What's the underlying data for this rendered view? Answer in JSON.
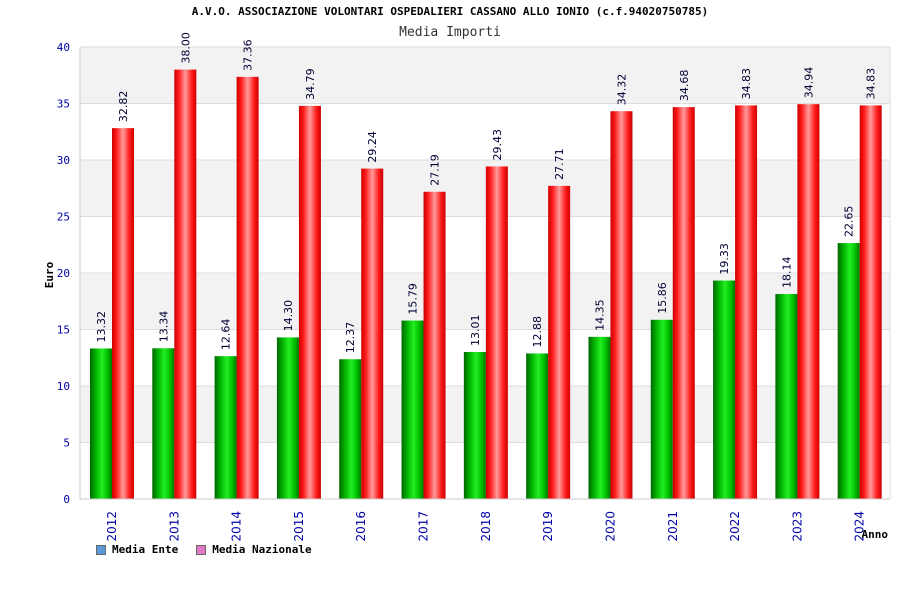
{
  "chart_data": {
    "type": "bar",
    "title": "A.V.O. ASSOCIAZIONE VOLONTARI OSPEDALIERI CASSANO ALLO IONIO (c.f.94020750785)",
    "subtitle": "Media Importi",
    "xlabel": "Anno",
    "ylabel": "Euro",
    "ylim": [
      0,
      40
    ],
    "yticks": [
      0,
      5,
      10,
      15,
      20,
      25,
      30,
      35,
      40
    ],
    "categories": [
      "2012",
      "2013",
      "2014",
      "2015",
      "2016",
      "2017",
      "2018",
      "2019",
      "2020",
      "2021",
      "2022",
      "2023",
      "2024"
    ],
    "series": [
      {
        "name": "Media Ente",
        "color": "#00c000",
        "values": [
          13.32,
          13.34,
          12.64,
          14.3,
          12.37,
          15.79,
          13.01,
          12.88,
          14.35,
          15.86,
          19.33,
          18.14,
          22.65
        ],
        "labels": [
          "13.32",
          "13.34",
          "12.64",
          "14.30",
          "12.37",
          "15.79",
          "13.01",
          "12.88",
          "14.35",
          "15.86",
          "19.33",
          "18.14",
          "22.65"
        ]
      },
      {
        "name": "Media Nazionale",
        "color": "#ff0000",
        "values": [
          32.82,
          38.0,
          37.36,
          34.79,
          29.24,
          27.19,
          29.43,
          27.71,
          34.32,
          34.68,
          34.83,
          34.94,
          34.83
        ],
        "labels": [
          "32.82",
          "38.00",
          "37.36",
          "34.79",
          "29.24",
          "27.19",
          "29.43",
          "27.71",
          "34.32",
          "34.68",
          "34.83",
          "34.94",
          "34.83"
        ]
      }
    ],
    "legend": [
      {
        "label": "Media Ente",
        "color": "#5b9bd5"
      },
      {
        "label": "Media Nazionale",
        "color": "#e377c2"
      }
    ],
    "grid": true,
    "legend_position": "bottom-left"
  }
}
